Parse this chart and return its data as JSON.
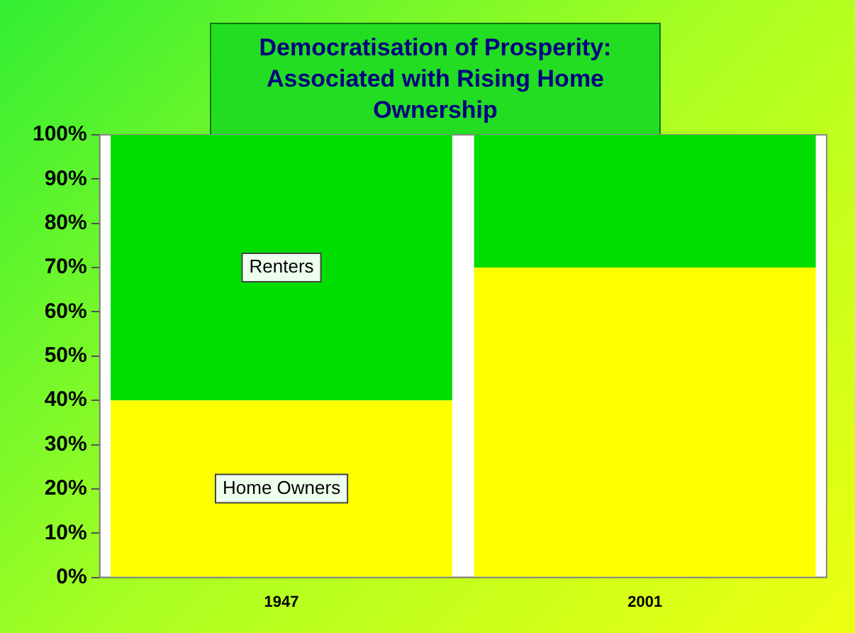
{
  "chart_data": {
    "type": "bar",
    "stacked": true,
    "title": "Democratisation of Prosperity:\nAssociated with Rising Home Ownership",
    "categories": [
      "1947",
      "2001"
    ],
    "series": [
      {
        "name": "Home Owners",
        "color": "#ffff00",
        "values": [
          40,
          70
        ]
      },
      {
        "name": "Renters",
        "color": "#00dd00",
        "values": [
          60,
          30
        ]
      }
    ],
    "ylim": [
      0,
      100
    ],
    "yticks": [
      {
        "value": 0,
        "label": "0%"
      },
      {
        "value": 10,
        "label": "10%"
      },
      {
        "value": 20,
        "label": "20%"
      },
      {
        "value": 30,
        "label": "30%"
      },
      {
        "value": 40,
        "label": "40%"
      },
      {
        "value": 50,
        "label": "50%"
      },
      {
        "value": 60,
        "label": "60%"
      },
      {
        "value": 70,
        "label": "70%"
      },
      {
        "value": 80,
        "label": "80%"
      },
      {
        "value": 90,
        "label": "90%"
      },
      {
        "value": 100,
        "label": "100%"
      }
    ],
    "grid": false,
    "legend": false
  }
}
